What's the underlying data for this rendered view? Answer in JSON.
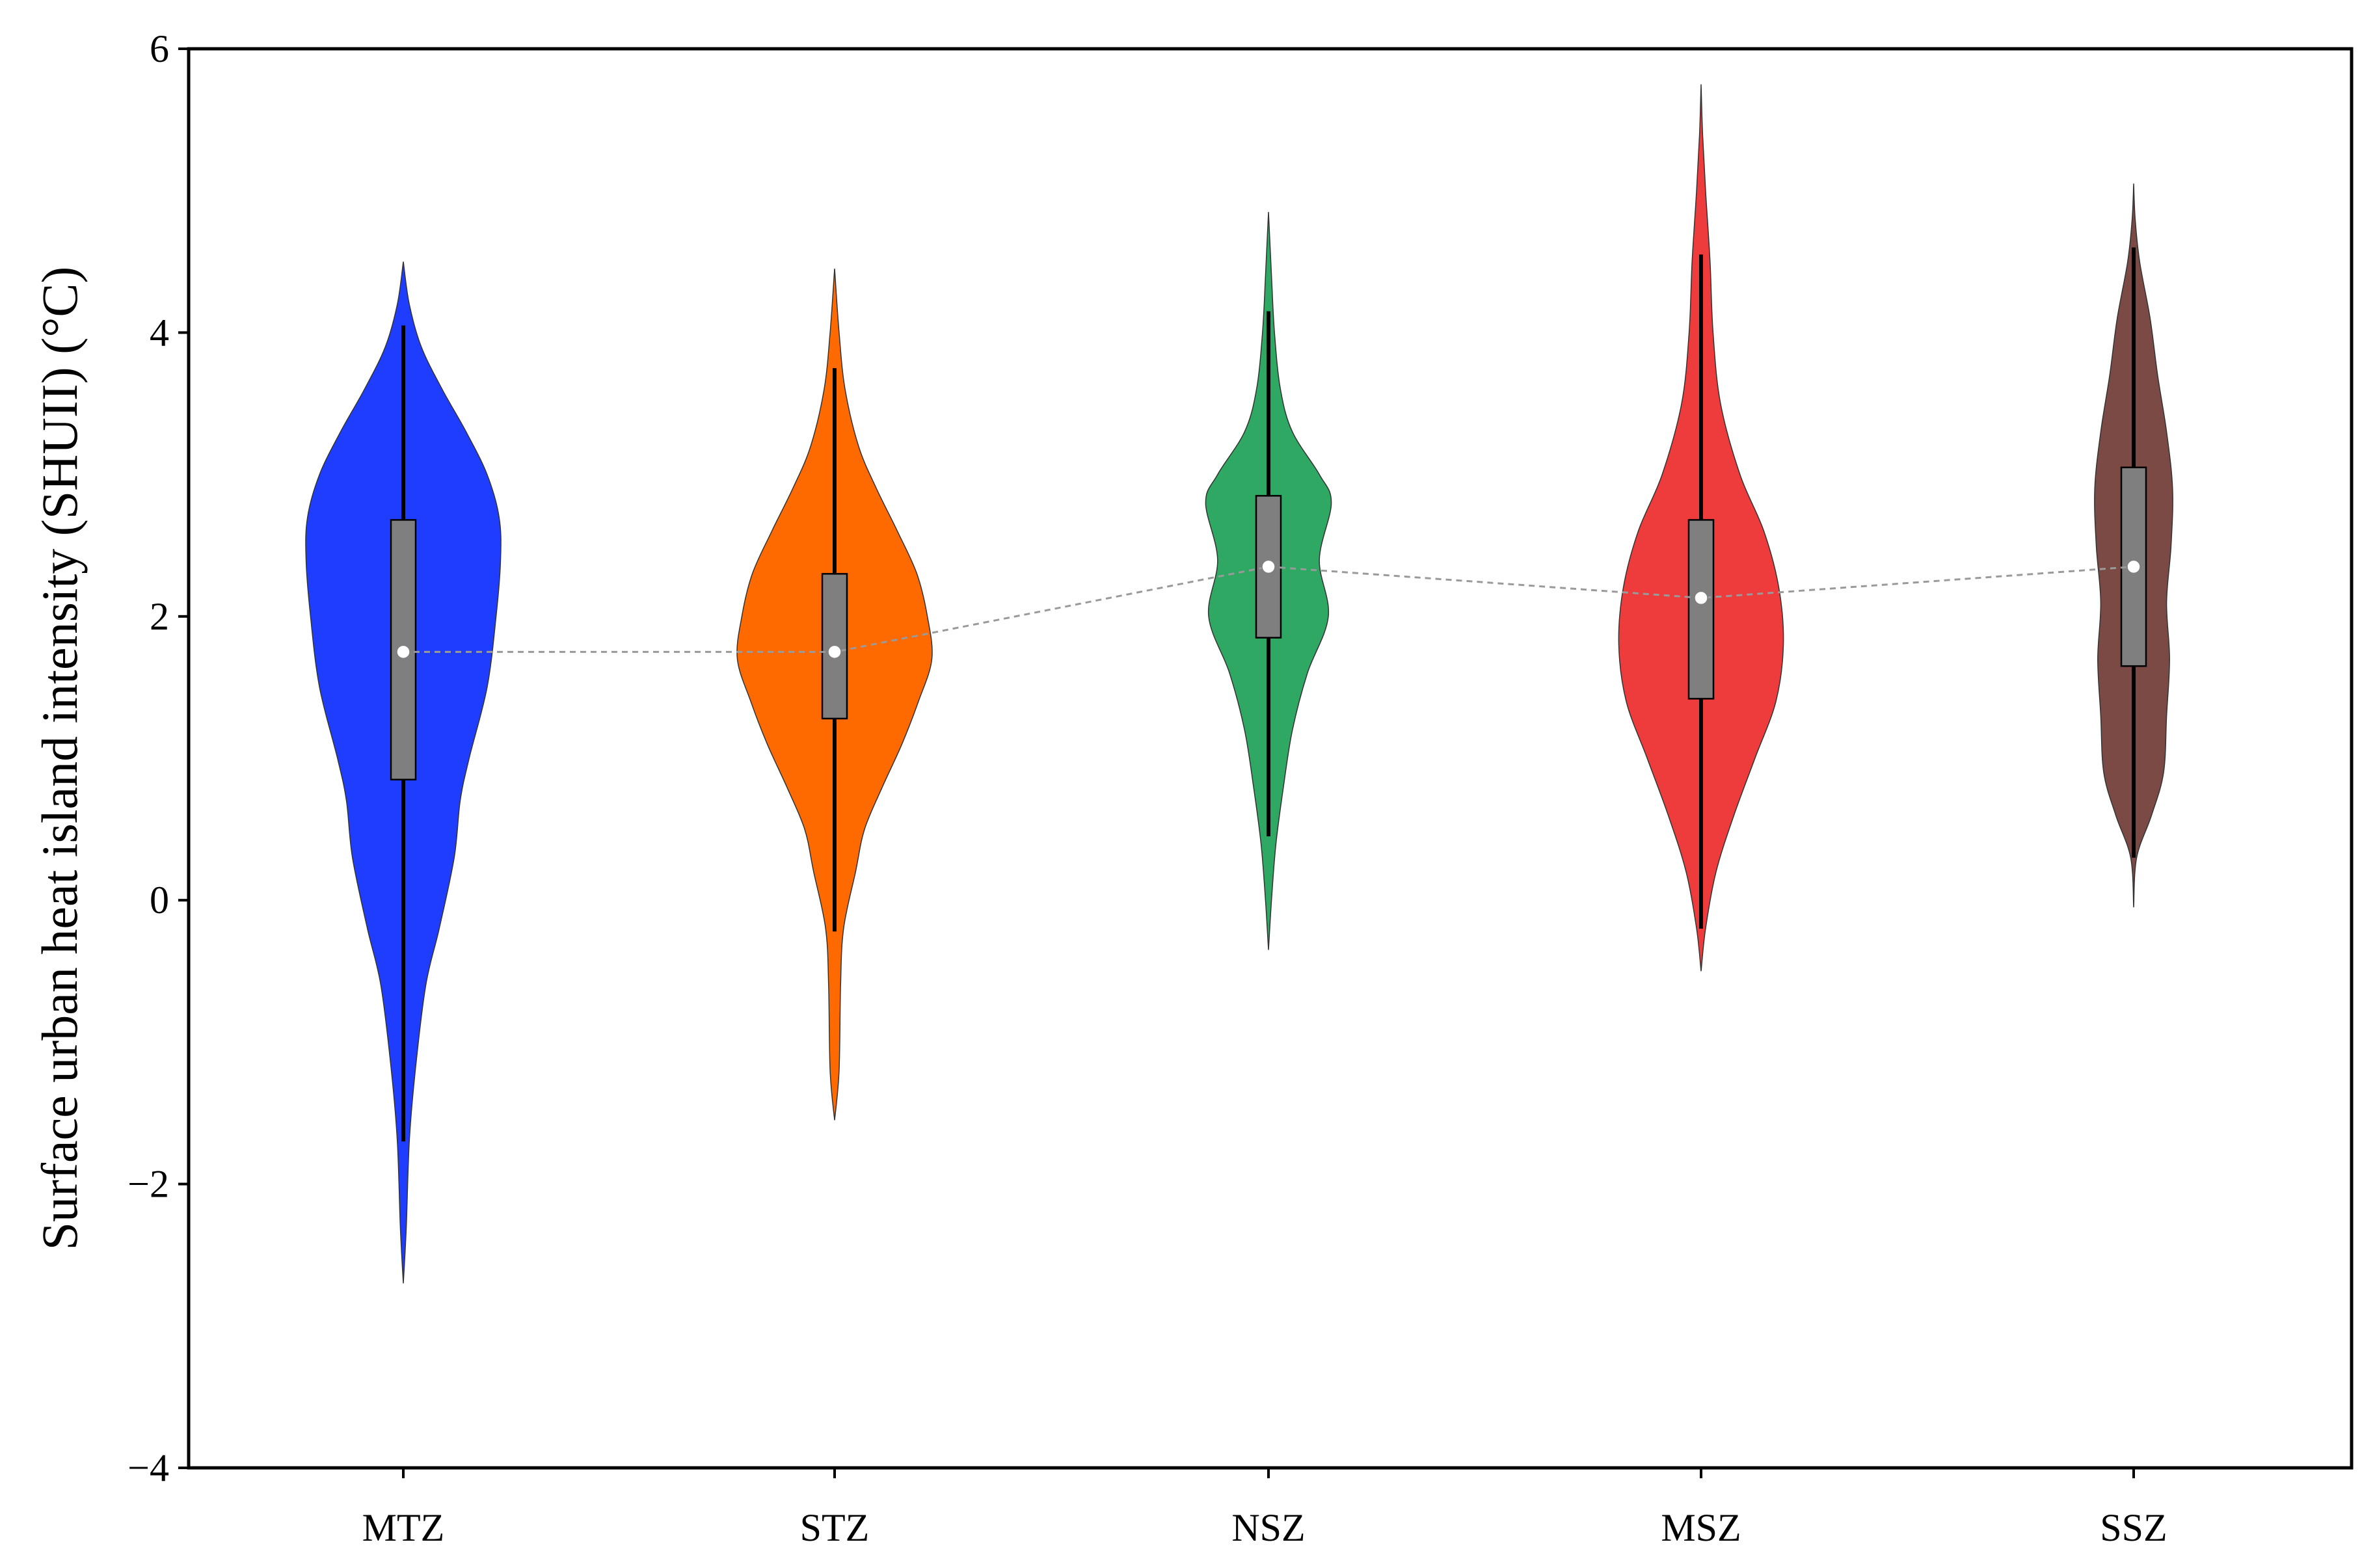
{
  "chart_data": {
    "type": "violin",
    "title": "",
    "xlabel": "",
    "ylabel": "Surface urban heat island intensity (SHUII) (°C)",
    "ylim": [
      -4,
      6
    ],
    "yticks": [
      {
        "value": -4,
        "label": "−4"
      },
      {
        "value": -2,
        "label": "−2"
      },
      {
        "value": 0,
        "label": "0"
      },
      {
        "value": 2,
        "label": "2"
      },
      {
        "value": 4,
        "label": "4"
      },
      {
        "value": 6,
        "label": "6"
      }
    ],
    "grid": false,
    "legend": "none",
    "categories": [
      "MTZ",
      "STZ",
      "NSZ",
      "MSZ",
      "SSZ"
    ],
    "colors": [
      "#1f3dff",
      "#ff6a00",
      "#2ea862",
      "#ee3b3b",
      "#7b4a45"
    ],
    "box_color": "#7f7f7f",
    "median_line_color": "#9a9a9a",
    "violins": [
      {
        "name": "MTZ",
        "min": -2.7,
        "max": 4.5,
        "q1": 0.85,
        "median": 1.75,
        "q3": 2.68,
        "whisker_low": -1.7,
        "whisker_high": 4.05,
        "profile": [
          [
            -2.7,
            0.0
          ],
          [
            -2.3,
            0.02
          ],
          [
            -1.7,
            0.04
          ],
          [
            -1.2,
            0.08
          ],
          [
            -0.6,
            0.15
          ],
          [
            -0.2,
            0.24
          ],
          [
            0.3,
            0.34
          ],
          [
            0.7,
            0.38
          ],
          [
            1.0,
            0.44
          ],
          [
            1.5,
            0.56
          ],
          [
            2.0,
            0.62
          ],
          [
            2.4,
            0.65
          ],
          [
            2.7,
            0.64
          ],
          [
            3.0,
            0.56
          ],
          [
            3.3,
            0.42
          ],
          [
            3.6,
            0.26
          ],
          [
            3.9,
            0.12
          ],
          [
            4.2,
            0.04
          ],
          [
            4.5,
            0.0
          ]
        ]
      },
      {
        "name": "STZ",
        "min": -1.55,
        "max": 4.45,
        "q1": 1.28,
        "median": 1.75,
        "q3": 2.3,
        "whisker_low": -0.22,
        "whisker_high": 3.75,
        "profile": [
          [
            -1.55,
            0.0
          ],
          [
            -1.2,
            0.03
          ],
          [
            -0.6,
            0.04
          ],
          [
            -0.2,
            0.06
          ],
          [
            0.2,
            0.14
          ],
          [
            0.5,
            0.2
          ],
          [
            0.8,
            0.32
          ],
          [
            1.1,
            0.45
          ],
          [
            1.4,
            0.56
          ],
          [
            1.7,
            0.65
          ],
          [
            2.0,
            0.62
          ],
          [
            2.3,
            0.55
          ],
          [
            2.6,
            0.42
          ],
          [
            2.9,
            0.28
          ],
          [
            3.2,
            0.16
          ],
          [
            3.6,
            0.07
          ],
          [
            4.0,
            0.03
          ],
          [
            4.45,
            0.0
          ]
        ]
      },
      {
        "name": "NSZ",
        "min": -0.35,
        "max": 4.85,
        "q1": 1.85,
        "median": 2.35,
        "q3": 2.85,
        "whisker_low": 0.45,
        "whisker_high": 4.15,
        "profile": [
          [
            -0.35,
            0.0
          ],
          [
            0.0,
            0.02
          ],
          [
            0.4,
            0.05
          ],
          [
            0.8,
            0.1
          ],
          [
            1.2,
            0.16
          ],
          [
            1.6,
            0.26
          ],
          [
            2.0,
            0.4
          ],
          [
            2.4,
            0.34
          ],
          [
            2.8,
            0.42
          ],
          [
            3.0,
            0.34
          ],
          [
            3.3,
            0.16
          ],
          [
            3.6,
            0.08
          ],
          [
            4.0,
            0.04
          ],
          [
            4.4,
            0.02
          ],
          [
            4.85,
            0.0
          ]
        ]
      },
      {
        "name": "MSZ",
        "min": -0.5,
        "max": 5.75,
        "q1": 1.42,
        "median": 2.13,
        "q3": 2.68,
        "whisker_low": -0.2,
        "whisker_high": 4.55,
        "profile": [
          [
            -0.5,
            0.0
          ],
          [
            -0.2,
            0.03
          ],
          [
            0.2,
            0.1
          ],
          [
            0.6,
            0.22
          ],
          [
            1.0,
            0.36
          ],
          [
            1.4,
            0.5
          ],
          [
            1.8,
            0.55
          ],
          [
            2.2,
            0.52
          ],
          [
            2.6,
            0.42
          ],
          [
            3.0,
            0.26
          ],
          [
            3.5,
            0.13
          ],
          [
            4.0,
            0.08
          ],
          [
            4.5,
            0.06
          ],
          [
            5.0,
            0.03
          ],
          [
            5.4,
            0.01
          ],
          [
            5.75,
            0.0
          ]
        ]
      },
      {
        "name": "SSZ",
        "min": -0.05,
        "max": 5.05,
        "q1": 1.65,
        "median": 2.35,
        "q3": 3.05,
        "whisker_low": 0.3,
        "whisker_high": 4.6,
        "profile": [
          [
            -0.05,
            0.0
          ],
          [
            0.3,
            0.02
          ],
          [
            0.6,
            0.12
          ],
          [
            0.9,
            0.2
          ],
          [
            1.3,
            0.22
          ],
          [
            1.7,
            0.24
          ],
          [
            2.1,
            0.22
          ],
          [
            2.5,
            0.25
          ],
          [
            2.9,
            0.26
          ],
          [
            3.3,
            0.22
          ],
          [
            3.7,
            0.16
          ],
          [
            4.1,
            0.11
          ],
          [
            4.5,
            0.04
          ],
          [
            4.8,
            0.01
          ],
          [
            5.05,
            0.0
          ]
        ]
      }
    ]
  }
}
